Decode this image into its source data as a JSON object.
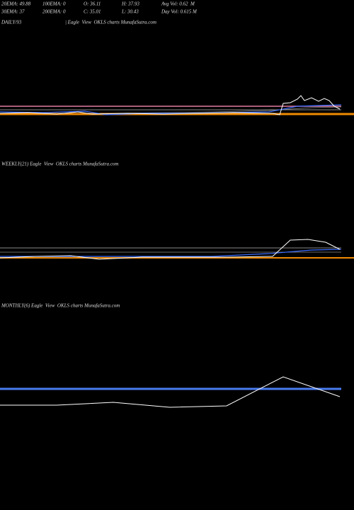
{
  "header": {
    "row1": [
      "20EMA: 49.88",
      "100EMA: 0",
      "O: 36.11",
      "H: 37.93",
      "Avg Vol: 0.62  M"
    ],
    "row2": [
      "30EMA: 37",
      "200EMA: 0",
      "C: 35.01",
      "L: 30.43",
      "Day Vol: 0.615 M"
    ]
  },
  "panels": [
    {
      "label": "DAILY/93",
      "caption": "| Eagle  View  OKLS charts MunafaSutra.com"
    },
    {
      "label": "WEEKLY(21) Eagle  View  OKLS charts MunafaSutra.com"
    },
    {
      "label": "MONTHLY(6) Eagle  View  OKLS charts MunafaSutra.com"
    }
  ]
}
